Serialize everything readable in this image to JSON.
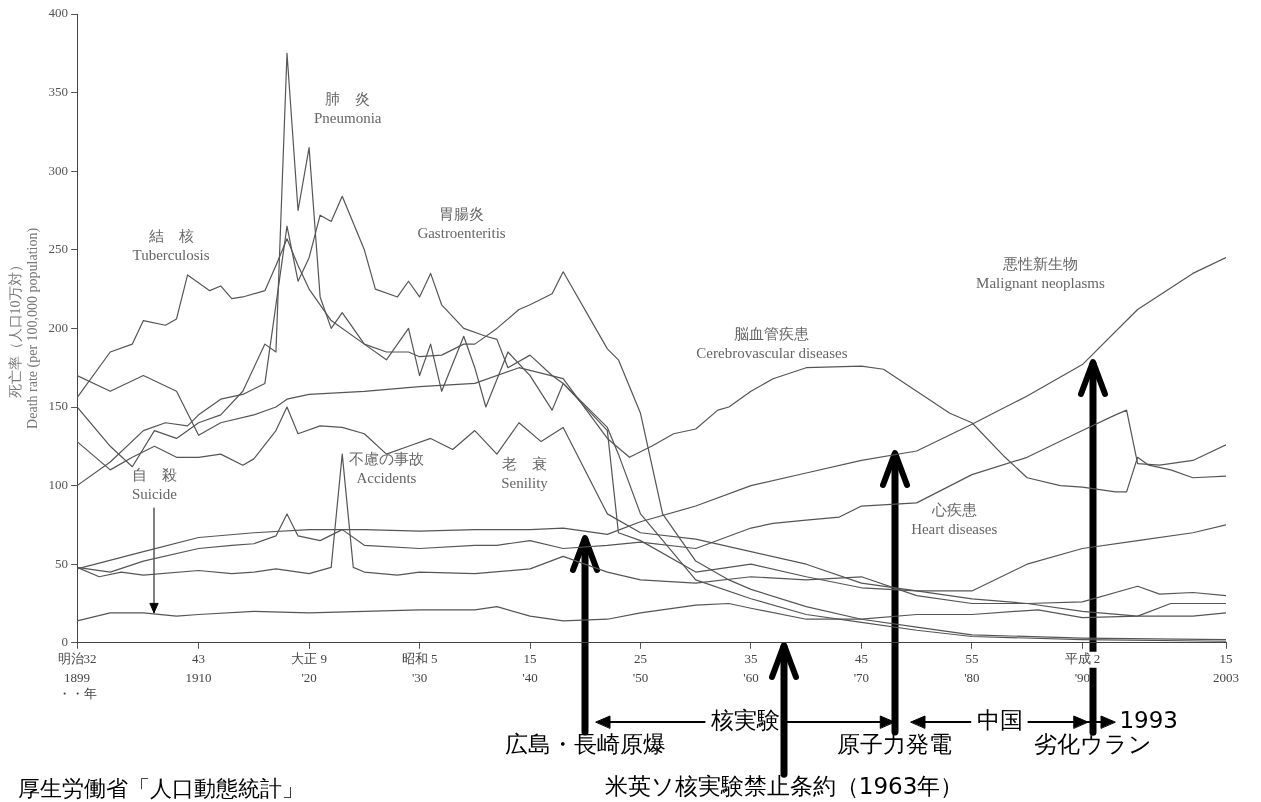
{
  "chart_data": {
    "type": "line",
    "ylabel": "死亡率（人口10万対）\nDeath rate (per 100,000 population)",
    "xlim": [
      1899,
      2003
    ],
    "ylim": [
      0,
      400
    ],
    "yticks": [
      0,
      50,
      100,
      150,
      200,
      250,
      300,
      350,
      400
    ],
    "xticks": [
      {
        "value": 1899,
        "label": "1899\n・・年"
      },
      1910,
      {
        "value": 1920,
        "label": "'20"
      },
      {
        "value": 1930,
        "label": "'30"
      },
      {
        "value": 1940,
        "label": "'40"
      },
      {
        "value": 1950,
        "label": "'50"
      },
      {
        "value": 1960,
        "label": "'60"
      },
      {
        "value": 1970,
        "label": "'70"
      },
      {
        "value": 1980,
        "label": "'80"
      },
      {
        "value": 1990,
        "label": "'90"
      },
      2003
    ],
    "grid": false,
    "legend": false,
    "marker": "none",
    "line_style": "solid",
    "series": [
      {
        "name": "結　核\nTuberculosis",
        "color": "#555555",
        "x": [
          1899,
          1902,
          1904,
          1905,
          1907,
          1908,
          1909,
          1911,
          1912,
          1913,
          1914,
          1916,
          1917,
          1918,
          1919,
          1920,
          1922,
          1925,
          1927,
          1929,
          1930,
          1932,
          1934,
          1935,
          1937,
          1939,
          1940,
          1942,
          1943,
          1945,
          1947,
          1948,
          1950,
          1952,
          1954,
          1955,
          1958,
          1960,
          1965,
          1970,
          1975,
          1980,
          1990,
          2003
        ],
        "values": [
          156,
          185,
          190,
          205,
          202,
          206,
          234,
          224,
          227,
          219,
          220,
          224,
          240,
          257,
          240,
          225,
          205,
          190,
          185,
          185,
          182,
          183,
          190,
          190,
          200,
          212,
          215,
          222,
          236,
          null,
          187,
          180,
          146,
          82,
          62,
          52,
          40,
          34,
          23,
          15,
          10,
          5,
          3,
          2
        ]
      },
      {
        "name": "肺　炎\nPneumonia",
        "color": "#555555",
        "x": [
          1899,
          1902,
          1904,
          1906,
          1908,
          1910,
          1912,
          1914,
          1916,
          1917,
          1918,
          1919,
          1920,
          1921,
          1922,
          1923,
          1925,
          1927,
          1929,
          1930,
          1931,
          1932,
          1934,
          1935,
          1936,
          1938,
          1940,
          1942,
          1943,
          1945,
          1947,
          1948,
          1950,
          1955,
          1960,
          1965,
          1970,
          1975,
          1980,
          1985,
          1990,
          1995,
          2000,
          2003
        ],
        "values": [
          150,
          125,
          112,
          135,
          130,
          140,
          145,
          160,
          190,
          185,
          375,
          275,
          315,
          220,
          200,
          210,
          190,
          180,
          200,
          170,
          190,
          160,
          195,
          175,
          150,
          185,
          170,
          148,
          165,
          null,
          135,
          70,
          65,
          45,
          50,
          42,
          35,
          33,
          33,
          50,
          60,
          65,
          70,
          75
        ]
      },
      {
        "name": "胃腸炎\nGastroenteritis",
        "color": "#555555",
        "x": [
          1899,
          1902,
          1905,
          1907,
          1909,
          1910,
          1912,
          1914,
          1916,
          1918,
          1919,
          1920,
          1921,
          1922,
          1923,
          1925,
          1926,
          1928,
          1929,
          1930,
          1931,
          1932,
          1934,
          1936,
          1937,
          1938,
          1940,
          1942,
          1943,
          1945,
          1947,
          1948,
          1950,
          1955,
          1960,
          1965,
          1970,
          1975,
          1980,
          1990,
          2003
        ],
        "values": [
          100,
          115,
          135,
          140,
          138,
          145,
          155,
          158,
          165,
          265,
          230,
          245,
          272,
          268,
          284,
          250,
          225,
          220,
          230,
          220,
          235,
          215,
          200,
          195,
          193,
          175,
          183,
          170,
          165,
          null,
          137,
          120,
          82,
          40,
          28,
          18,
          13,
          8,
          4,
          2,
          1
        ]
      },
      {
        "name": "脳血管疾患\nCerebrovascular diseases",
        "color": "#555555",
        "x": [
          1899,
          1902,
          1905,
          1908,
          1910,
          1912,
          1915,
          1917,
          1918,
          1920,
          1925,
          1930,
          1935,
          1939,
          1943,
          1945,
          1947,
          1949,
          1951,
          1953,
          1955,
          1957,
          1958,
          1960,
          1962,
          1965,
          1970,
          1972,
          1975,
          1978,
          1980,
          1983,
          1985,
          1988,
          1990,
          1993,
          1994,
          1995,
          1996,
          1998,
          2000,
          2003
        ],
        "values": [
          170,
          160,
          170,
          160,
          132,
          140,
          145,
          150,
          155,
          158,
          160,
          163,
          165,
          175,
          168,
          null,
          130,
          118,
          125,
          133,
          136,
          148,
          150,
          160,
          168,
          175,
          176,
          174,
          160,
          146,
          140,
          118,
          105,
          100,
          99,
          96,
          96,
          118,
          113,
          110,
          105,
          106
        ]
      },
      {
        "name": "悪性新生物\nMalignant neoplasms",
        "color": "#555555",
        "x": [
          1899,
          1905,
          1910,
          1915,
          1920,
          1925,
          1930,
          1935,
          1940,
          1943,
          1947,
          1950,
          1955,
          1960,
          1965,
          1970,
          1975,
          1980,
          1985,
          1990,
          1995,
          2000,
          2003
        ],
        "values": [
          47,
          58,
          67,
          70,
          72,
          72,
          71,
          72,
          72,
          73,
          69,
          77,
          87,
          100,
          108,
          116,
          122,
          139,
          157,
          177,
          212,
          235,
          245
        ]
      },
      {
        "name": "心疾患\nHeart diseases",
        "color": "#555555",
        "x": [
          1899,
          1902,
          1905,
          1910,
          1913,
          1915,
          1917,
          1918,
          1919,
          1921,
          1923,
          1925,
          1930,
          1935,
          1937,
          1940,
          1943,
          1947,
          1950,
          1955,
          1960,
          1962,
          1965,
          1968,
          1970,
          1975,
          1980,
          1985,
          1990,
          1993,
          1994,
          1995,
          1997,
          2000,
          2003
        ],
        "values": [
          48,
          45,
          52,
          60,
          62,
          63,
          68,
          82,
          68,
          65,
          72,
          62,
          60,
          62,
          62,
          65,
          60,
          62,
          64,
          60,
          73,
          76,
          78,
          80,
          87,
          89,
          107,
          118,
          135,
          145,
          148,
          114,
          113,
          116,
          126
        ]
      },
      {
        "name": "老　衰\nSenility",
        "color": "#555555",
        "x": [
          1899,
          1902,
          1904,
          1906,
          1908,
          1910,
          1912,
          1914,
          1915,
          1917,
          1918,
          1919,
          1921,
          1923,
          1925,
          1927,
          1929,
          1931,
          1933,
          1935,
          1937,
          1939,
          1941,
          1943,
          1945,
          1947,
          1950,
          1955,
          1960,
          1965,
          1970,
          1975,
          1980,
          1985,
          1990,
          1995,
          2000,
          2003
        ],
        "values": [
          128,
          110,
          118,
          125,
          118,
          118,
          120,
          113,
          117,
          135,
          150,
          133,
          138,
          137,
          133,
          120,
          125,
          130,
          123,
          135,
          120,
          140,
          128,
          137,
          null,
          82,
          70,
          66,
          58,
          50,
          38,
          33,
          28,
          25,
          20,
          17,
          17,
          19
        ]
      },
      {
        "name": "不慮の事故\nAccidents",
        "color": "#555555",
        "x": [
          1899,
          1901,
          1903,
          1905,
          1910,
          1913,
          1915,
          1917,
          1920,
          1922,
          1923,
          1924,
          1925,
          1928,
          1930,
          1935,
          1940,
          1943,
          1947,
          1950,
          1955,
          1960,
          1965,
          1970,
          1975,
          1980,
          1985,
          1990,
          1995,
          1997,
          2000,
          2003
        ],
        "values": [
          48,
          42,
          45,
          43,
          46,
          44,
          45,
          47,
          44,
          48,
          120,
          48,
          45,
          43,
          45,
          44,
          47,
          55,
          45,
          40,
          38,
          42,
          40,
          42,
          30,
          25,
          25,
          26,
          36,
          31,
          32,
          30
        ]
      },
      {
        "name": "自　殺\nSuicide",
        "color": "#555555",
        "x": [
          1899,
          1902,
          1905,
          1908,
          1910,
          1915,
          1920,
          1925,
          1930,
          1935,
          1937,
          1940,
          1943,
          1947,
          1950,
          1955,
          1958,
          1960,
          1965,
          1970,
          1975,
          1980,
          1986,
          1990,
          1995,
          1998,
          2003
        ],
        "values": [
          14,
          19,
          19,
          17,
          18,
          20,
          19,
          20,
          21,
          21,
          23,
          17,
          14,
          15,
          19,
          24,
          25,
          22,
          15,
          15,
          18,
          18,
          21,
          16,
          17,
          25,
          25
        ]
      }
    ],
    "annotations": [
      {
        "text": "広島・長崎原爆",
        "x": 1945,
        "y": 68
      },
      {
        "text": "原子力発電",
        "x": 1973,
        "y": 122
      },
      {
        "text": "劣化ウラン",
        "x": 1991,
        "y": 180
      },
      "明治32",
      "43",
      "大正 9",
      "昭和 5",
      "15",
      "25",
      "35",
      "45",
      "55",
      "平成 2",
      "15",
      "核実験",
      "中国",
      "1993",
      "米英ソ核実験禁止条約（1963年）",
      "厚生労働省「人口動態統計」"
    ]
  }
}
